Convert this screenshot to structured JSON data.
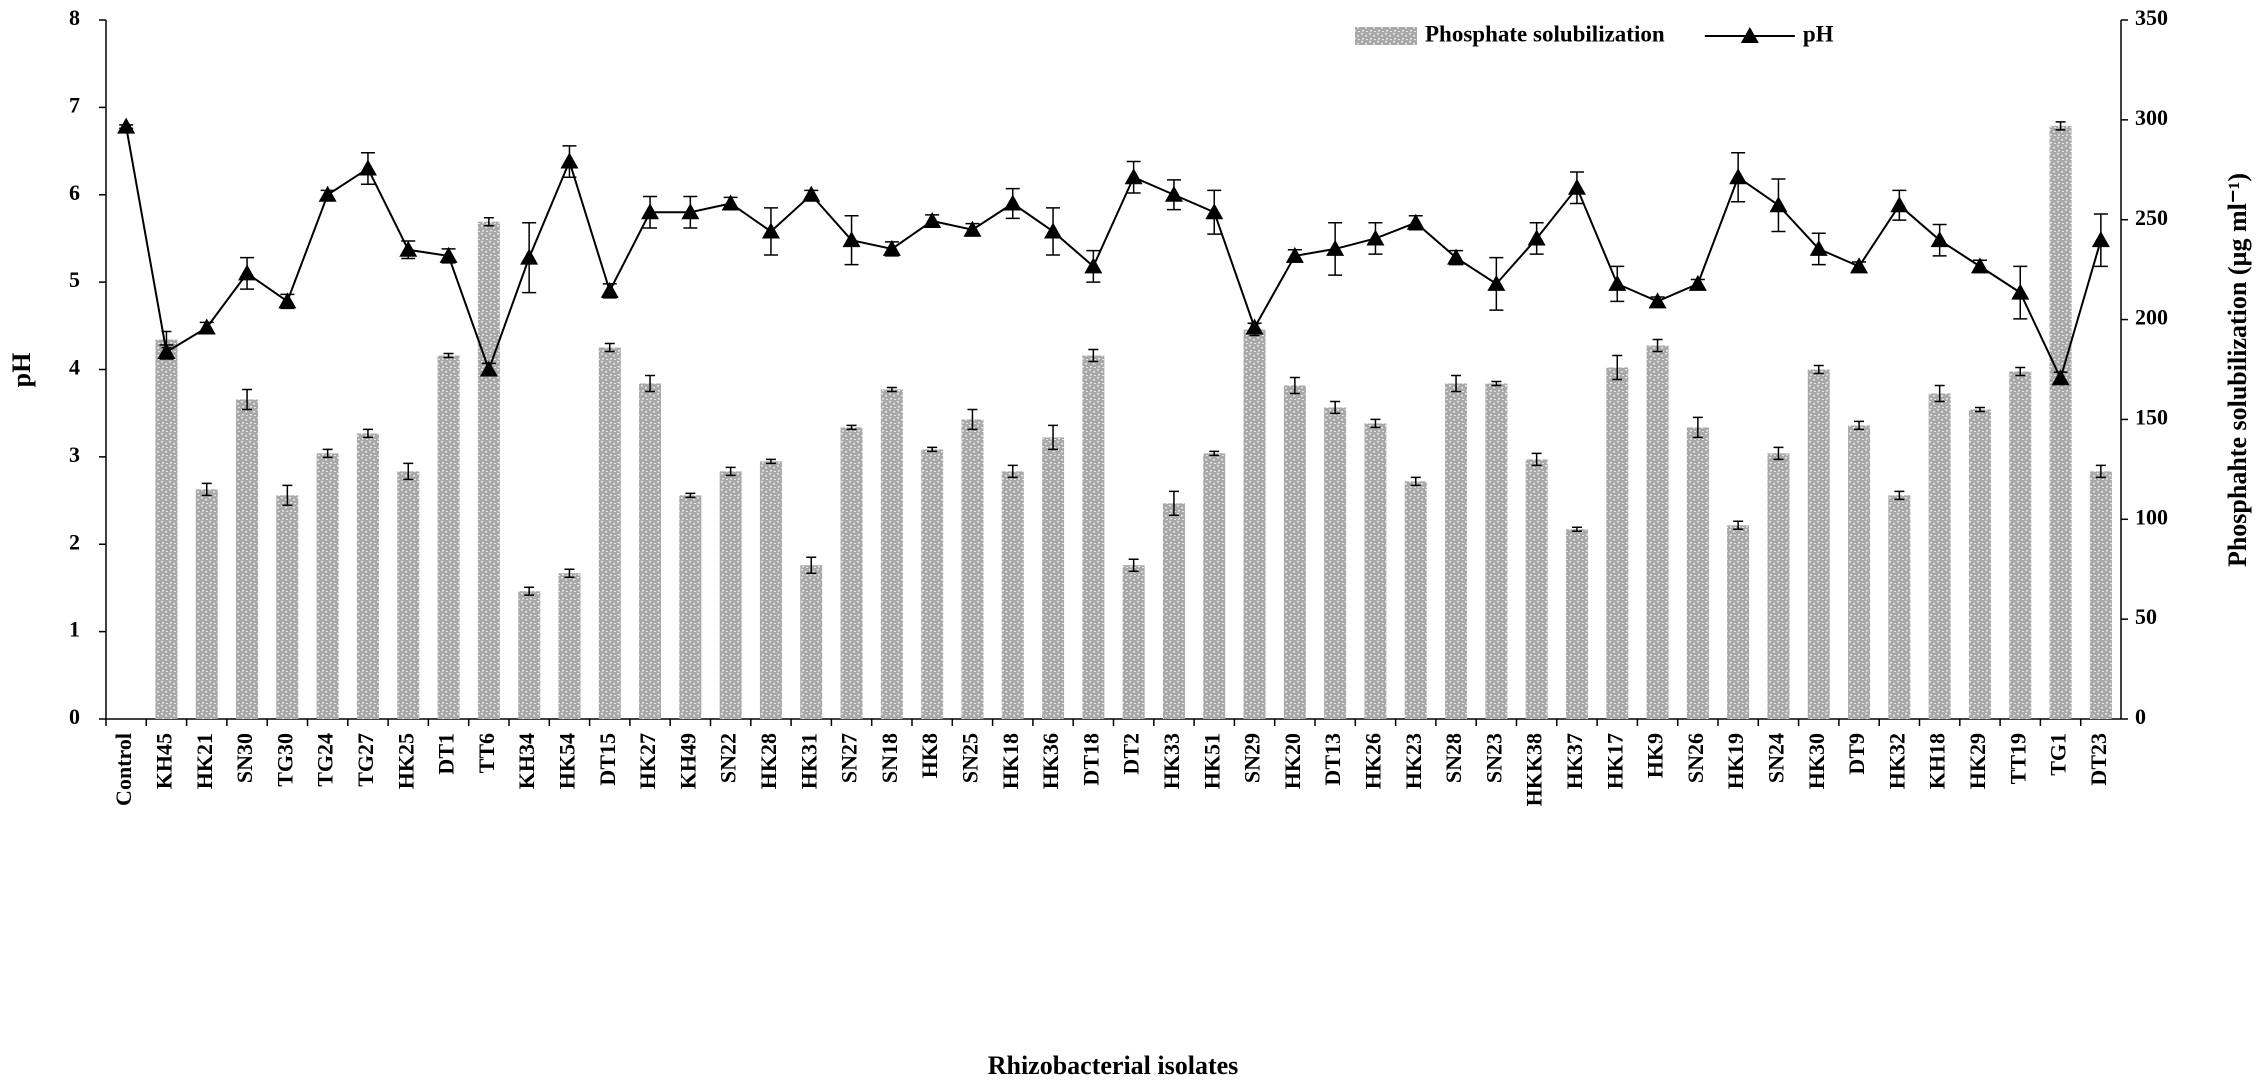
{
  "chart_data": {
    "type": "bar-line",
    "x_label": "Rhizobacterial isolates",
    "y_label": "pH",
    "y2_label": "Phosphahte solubilization (µg ml⁻¹)",
    "categories": [
      "Control",
      "KH45",
      "HK21",
      "SN30",
      "TG30",
      "TG24",
      "TG27",
      "HK25",
      "DT1",
      "TT6",
      "KH34",
      "HK54",
      "DT15",
      "HK27",
      "KH49",
      "SN22",
      "HK28",
      "HK31",
      "SN27",
      "SN18",
      "HK8",
      "SN25",
      "HK18",
      "HK36",
      "DT18",
      "DT2",
      "HK33",
      "HK51",
      "SN29",
      "HK20",
      "DT13",
      "HK26",
      "HK23",
      "SN28",
      "SN23",
      "HKK38",
      "HK37",
      "HK17",
      "HK9",
      "SN26",
      "HK19",
      "SN24",
      "HK30",
      "DT9",
      "HK32",
      "KH18",
      "HK29",
      "TT19",
      "TG1",
      "DT23"
    ],
    "ylim": [
      0,
      8
    ],
    "yticks": [
      0,
      1,
      2,
      3,
      4,
      5,
      6,
      7,
      8
    ],
    "y2lim": [
      0,
      350
    ],
    "y2ticks": [
      0,
      50,
      100,
      150,
      200,
      250,
      300,
      350
    ],
    "legend": "top-right",
    "series": [
      {
        "name": "Phosphate solubilization",
        "type": "bar",
        "axis": "y2",
        "color": "#a9a9a9",
        "values": [
          null,
          190,
          115,
          160,
          112,
          133,
          143,
          124,
          182,
          249,
          64,
          73,
          186,
          168,
          112,
          124,
          129,
          77,
          146,
          165,
          135,
          150,
          124,
          141,
          182,
          77,
          108,
          133,
          195,
          167,
          156,
          148,
          119,
          168,
          168,
          130,
          95,
          176,
          187,
          146,
          97,
          133,
          175,
          147,
          112,
          163,
          155,
          174,
          297,
          124
        ],
        "errors": [
          null,
          4,
          3,
          5,
          5,
          2,
          2,
          4,
          1,
          2,
          2,
          2,
          2,
          4,
          1,
          2,
          1,
          4,
          1,
          1,
          1,
          5,
          3,
          6,
          3,
          3,
          6,
          1,
          3,
          4,
          3,
          2,
          2,
          4,
          1,
          3,
          1,
          6,
          3,
          5,
          2,
          3,
          2,
          2,
          2,
          4,
          1,
          2,
          2,
          3
        ]
      },
      {
        "name": "pH",
        "type": "line",
        "axis": "y",
        "color": "#000000",
        "values": [
          6.78,
          4.2,
          4.48,
          5.1,
          4.78,
          6.0,
          6.3,
          5.37,
          5.3,
          4.0,
          5.28,
          6.38,
          4.9,
          5.8,
          5.8,
          5.9,
          5.58,
          6.0,
          5.48,
          5.38,
          5.7,
          5.6,
          5.9,
          5.58,
          5.18,
          6.2,
          6.0,
          5.8,
          4.48,
          5.3,
          5.38,
          5.5,
          5.68,
          5.28,
          4.98,
          5.5,
          6.08,
          4.98,
          4.78,
          4.98,
          6.2,
          5.88,
          5.38,
          5.18,
          5.88,
          5.48,
          5.18,
          4.88,
          3.9,
          5.48
        ],
        "errors": [
          0.02,
          0.08,
          0.06,
          0.18,
          0.08,
          0.05,
          0.18,
          0.1,
          0.08,
          0.07,
          0.4,
          0.18,
          0.08,
          0.18,
          0.18,
          0.07,
          0.27,
          0.05,
          0.28,
          0.08,
          0.07,
          0.07,
          0.17,
          0.27,
          0.18,
          0.18,
          0.17,
          0.25,
          0.05,
          0.07,
          0.3,
          0.18,
          0.08,
          0.08,
          0.3,
          0.18,
          0.18,
          0.2,
          0.05,
          0.05,
          0.28,
          0.3,
          0.18,
          0.05,
          0.17,
          0.18,
          0.07,
          0.3,
          0.07,
          0.3
        ]
      }
    ]
  }
}
